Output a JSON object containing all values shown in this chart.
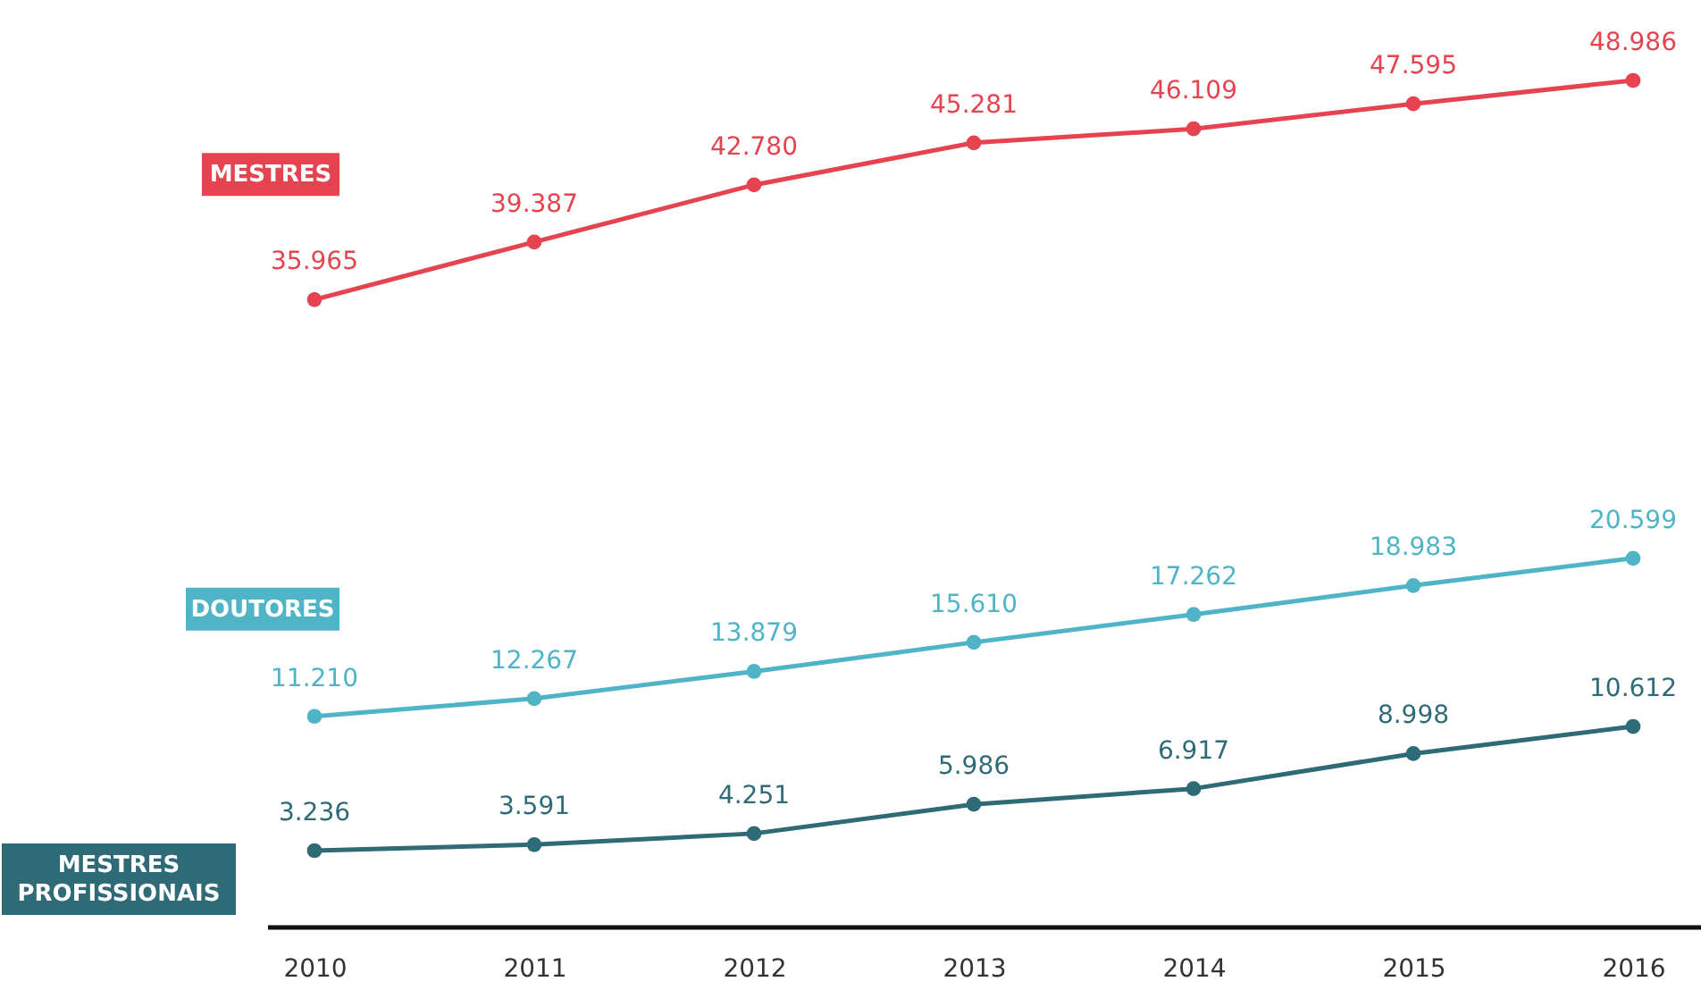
{
  "chart_data": {
    "type": "line",
    "categories": [
      "2010",
      "2011",
      "2012",
      "2013",
      "2014",
      "2015",
      "2016"
    ],
    "marker": "circle",
    "series": [
      {
        "name": "MESTRES",
        "color": "#e5434f",
        "values": [
          35965,
          39387,
          42780,
          45281,
          46109,
          47595,
          48986
        ],
        "value_labels": [
          "35.965",
          "39.387",
          "42.780",
          "45.281",
          "46.109",
          "47.595",
          "48.986"
        ]
      },
      {
        "name": "DOUTORES",
        "color": "#4fb4c6",
        "values": [
          11210,
          12267,
          13879,
          15610,
          17262,
          18983,
          20599
        ],
        "value_labels": [
          "11.210",
          "12.267",
          "13.879",
          "15.610",
          "17.262",
          "18.983",
          "20.599"
        ]
      },
      {
        "name": "MESTRES PROFISSIONAIS",
        "color": "#2f6a77",
        "values": [
          3236,
          3591,
          4251,
          5986,
          6917,
          8998,
          10612
        ],
        "value_labels": [
          "3.236",
          "3.591",
          "4.251",
          "5.986",
          "6.917",
          "8.998",
          "10.612"
        ]
      }
    ]
  }
}
